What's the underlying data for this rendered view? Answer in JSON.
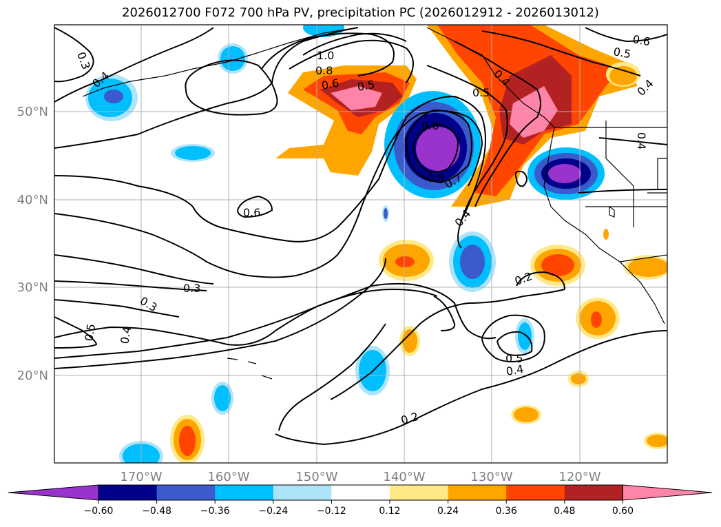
{
  "title": "2026012700 F072 700 hPa PV, precipitation PC (2026012912 - 2026013012)",
  "lat_labels": [
    "50°N",
    "40°N",
    "30°N",
    "20°N"
  ],
  "lon_labels": [
    "170°W",
    "160°W",
    "150°W",
    "140°W",
    "130°W",
    "120°W"
  ],
  "contour_labels": [
    "0.3",
    "0.4",
    "1.0",
    "0.8",
    "0.6",
    "0.5",
    "0.6",
    "0.5",
    "0.4",
    "0.4",
    "0.6",
    "0.8",
    "0.7",
    "0.5",
    "0.4",
    "0.6",
    "0.4",
    "0.3",
    "0.3",
    "0.5",
    "0.4",
    "0.2",
    "0.5",
    "0.4",
    "0.2"
  ],
  "colorbar": {
    "ticks": [
      "−0.60",
      "−0.48",
      "−0.36",
      "−0.24",
      "−0.12",
      "0.12",
      "0.24",
      "0.36",
      "0.48",
      "0.60"
    ],
    "colors": [
      "#9933cc",
      "#00008b",
      "#3a5bcc",
      "#00bfff",
      "#aee4fa",
      "#ffffff",
      "#ffe987",
      "#ffa500",
      "#ff4500",
      "#b22222",
      "#ff85a8"
    ]
  }
}
